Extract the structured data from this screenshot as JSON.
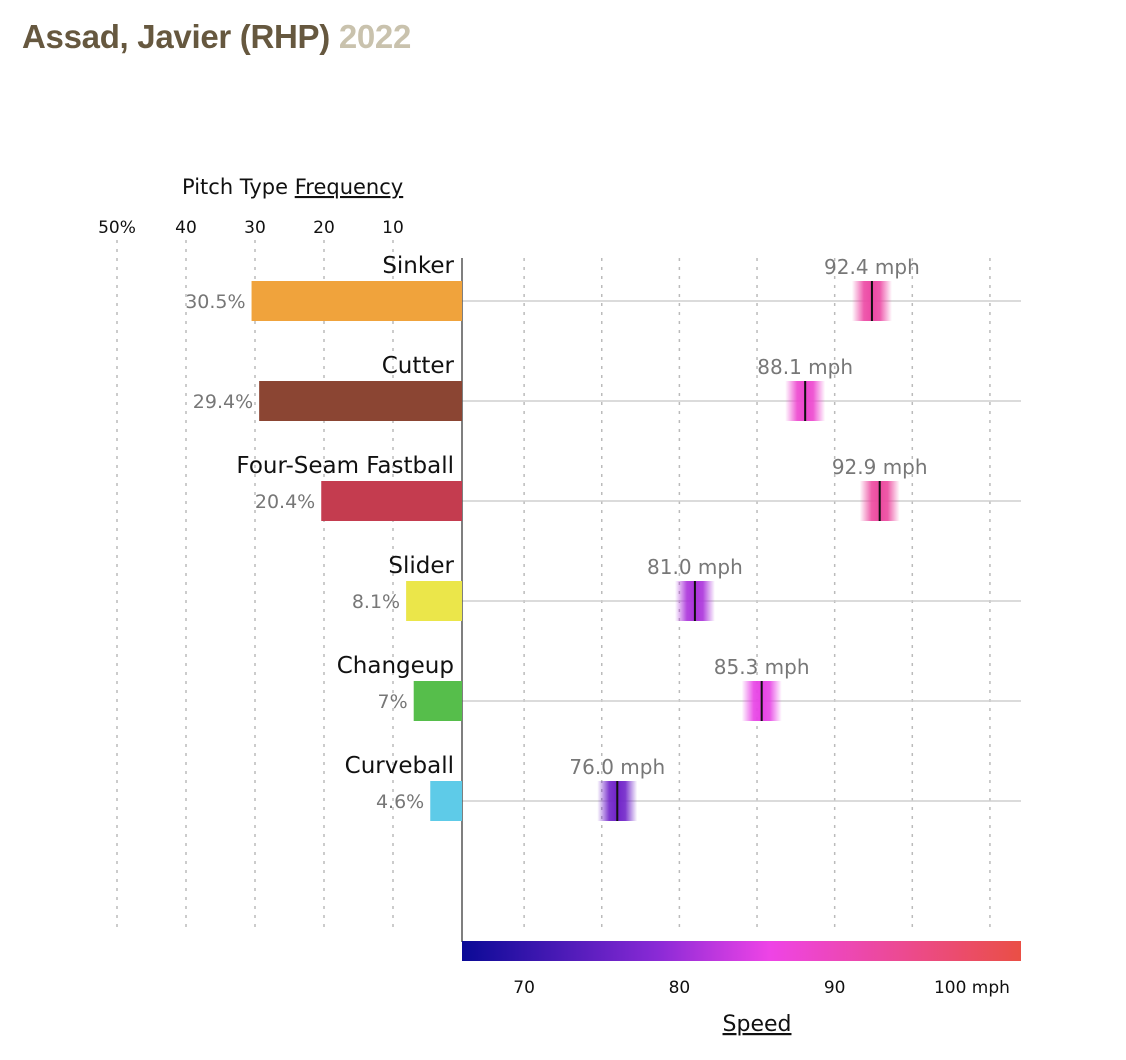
{
  "header": {
    "player": "Assad, Javier (RHP)",
    "season": "2022"
  },
  "chart_data": {
    "type": "bar",
    "frequency_axis": {
      "title_prefix": "Pitch Type ",
      "title_link": "Frequency",
      "ticks": [
        {
          "value": 50,
          "label": "50%"
        },
        {
          "value": 40,
          "label": "40"
        },
        {
          "value": 30,
          "label": "30"
        },
        {
          "value": 20,
          "label": "20"
        },
        {
          "value": 10,
          "label": "10"
        }
      ],
      "range": [
        0,
        50
      ]
    },
    "speed_axis": {
      "title": "Speed",
      "range": [
        66,
        102
      ],
      "gridlines": [
        70,
        75,
        80,
        85,
        90,
        95,
        100
      ],
      "ticks": [
        {
          "value": 70,
          "label": "70"
        },
        {
          "value": 80,
          "label": "80"
        },
        {
          "value": 90,
          "label": "90"
        },
        {
          "value": 100,
          "label": "100 mph"
        }
      ],
      "color_scale": [
        "#0a0a96",
        "#8a2ad6",
        "#ee44e6",
        "#ea4f45"
      ]
    },
    "pitches": [
      {
        "name": "Sinker",
        "frequency": 30.5,
        "frequency_label": "30.5%",
        "speed": 92.4,
        "speed_label": "92.4 mph",
        "color": "#f0a33c"
      },
      {
        "name": "Cutter",
        "frequency": 29.4,
        "frequency_label": "29.4%",
        "speed": 88.1,
        "speed_label": "88.1 mph",
        "color": "#8b4533"
      },
      {
        "name": "Four-Seam Fastball",
        "frequency": 20.4,
        "frequency_label": "20.4%",
        "speed": 92.9,
        "speed_label": "92.9 mph",
        "color": "#c43c4f"
      },
      {
        "name": "Slider",
        "frequency": 8.1,
        "frequency_label": "8.1%",
        "speed": 81.0,
        "speed_label": "81.0 mph",
        "color": "#ebe64a"
      },
      {
        "name": "Changeup",
        "frequency": 7,
        "frequency_label": "7%",
        "speed": 85.3,
        "speed_label": "85.3 mph",
        "color": "#56be4b"
      },
      {
        "name": "Curveball",
        "frequency": 4.6,
        "frequency_label": "4.6%",
        "speed": 76.0,
        "speed_label": "76.0 mph",
        "color": "#5ecbe8"
      }
    ]
  }
}
